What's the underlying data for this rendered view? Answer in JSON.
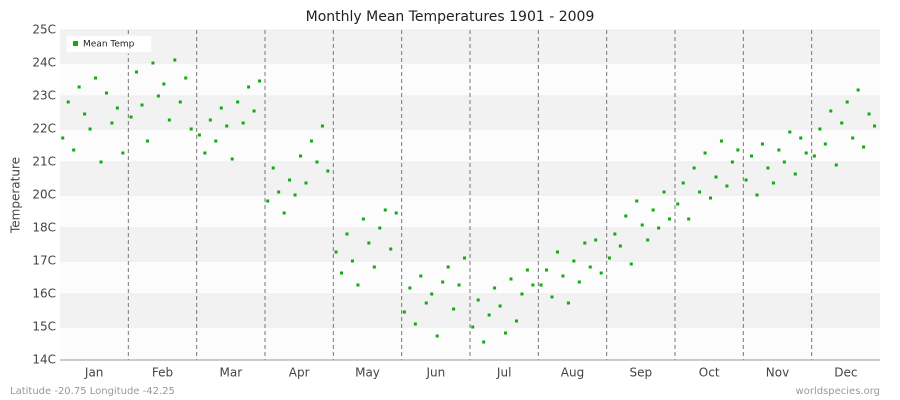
{
  "chart_data": {
    "type": "scatter",
    "title": "Monthly Mean Temperatures 1901 - 2009",
    "ylabel": "Temperature",
    "categories": [
      "Jan",
      "Feb",
      "Mar",
      "Apr",
      "May",
      "Jun",
      "Jul",
      "Aug",
      "Sep",
      "Oct",
      "Nov",
      "Dec"
    ],
    "xlim": [
      0,
      12
    ],
    "ylim": [
      14,
      25
    ],
    "yticks": [
      {
        "value": 14,
        "label": "14C"
      },
      {
        "value": 15.1,
        "label": "15C"
      },
      {
        "value": 16.2,
        "label": "16C"
      },
      {
        "value": 17.3,
        "label": "17C"
      },
      {
        "value": 18.4,
        "label": "18C"
      },
      {
        "value": 19.5,
        "label": "20C"
      },
      {
        "value": 20.6,
        "label": "21C"
      },
      {
        "value": 21.7,
        "label": "22C"
      },
      {
        "value": 22.8,
        "label": "23C"
      },
      {
        "value": 23.9,
        "label": "24C"
      },
      {
        "value": 25,
        "label": "25C"
      }
    ],
    "legend": "top-left",
    "series": [
      {
        "name": "Mean Temp",
        "color": "#11aa11",
        "x": [
          0.04,
          0.12,
          0.2,
          0.28,
          0.36,
          0.44,
          0.52,
          0.6,
          0.68,
          0.76,
          0.84,
          0.92,
          1.04,
          1.12,
          1.2,
          1.28,
          1.36,
          1.44,
          1.52,
          1.6,
          1.68,
          1.76,
          1.84,
          1.92,
          2.04,
          2.12,
          2.2,
          2.28,
          2.36,
          2.44,
          2.52,
          2.6,
          2.68,
          2.76,
          2.84,
          2.92,
          3.04,
          3.12,
          3.2,
          3.28,
          3.36,
          3.44,
          3.52,
          3.6,
          3.68,
          3.76,
          3.84,
          3.92,
          4.04,
          4.12,
          4.2,
          4.28,
          4.36,
          4.44,
          4.52,
          4.6,
          4.68,
          4.76,
          4.84,
          4.92,
          5.04,
          5.12,
          5.2,
          5.28,
          5.36,
          5.44,
          5.52,
          5.6,
          5.68,
          5.76,
          5.84,
          5.92,
          6.04,
          6.12,
          6.2,
          6.28,
          6.36,
          6.44,
          6.52,
          6.6,
          6.68,
          6.76,
          6.84,
          6.92,
          7.04,
          7.12,
          7.2,
          7.28,
          7.36,
          7.44,
          7.52,
          7.6,
          7.68,
          7.76,
          7.84,
          7.92,
          8.04,
          8.12,
          8.2,
          8.28,
          8.36,
          8.44,
          8.52,
          8.6,
          8.68,
          8.76,
          8.84,
          8.92,
          9.04,
          9.12,
          9.2,
          9.28,
          9.36,
          9.44,
          9.52,
          9.6,
          9.68,
          9.76,
          9.84,
          9.92,
          10.04,
          10.12,
          10.2,
          10.28,
          10.36,
          10.44,
          10.52,
          10.6,
          10.68,
          10.76,
          10.84,
          10.92,
          11.04,
          11.12,
          11.2,
          11.28,
          11.36,
          11.44,
          11.52,
          11.6,
          11.68,
          11.76,
          11.84,
          11.92
        ],
        "values": [
          21.4,
          22.6,
          21.0,
          23.1,
          22.2,
          21.7,
          23.4,
          20.6,
          22.9,
          21.9,
          22.4,
          20.9,
          22.1,
          23.6,
          22.5,
          21.3,
          23.9,
          22.8,
          23.2,
          22.0,
          24.0,
          22.6,
          23.4,
          21.7,
          21.5,
          20.9,
          22.0,
          21.3,
          22.4,
          21.8,
          20.7,
          22.6,
          21.9,
          23.1,
          22.3,
          23.3,
          19.3,
          20.4,
          19.6,
          18.9,
          20.0,
          19.5,
          20.8,
          19.9,
          21.3,
          20.6,
          21.8,
          20.3,
          17.6,
          16.9,
          18.2,
          17.3,
          16.5,
          18.7,
          17.9,
          17.1,
          18.4,
          19.0,
          17.7,
          18.9,
          15.6,
          16.4,
          15.2,
          16.8,
          15.9,
          16.2,
          14.8,
          16.6,
          17.1,
          15.7,
          16.5,
          17.4,
          15.1,
          16.0,
          14.6,
          15.5,
          16.4,
          15.8,
          14.9,
          16.7,
          15.3,
          16.2,
          17.0,
          16.5,
          16.5,
          17.0,
          16.1,
          17.6,
          16.8,
          15.9,
          17.3,
          16.6,
          17.9,
          17.1,
          18.0,
          16.9,
          17.4,
          18.2,
          17.8,
          18.8,
          17.2,
          19.3,
          18.5,
          18.0,
          19.0,
          18.4,
          19.6,
          18.7,
          19.2,
          19.9,
          18.7,
          20.4,
          19.6,
          20.9,
          19.4,
          20.1,
          21.3,
          19.8,
          20.6,
          21.0,
          20.0,
          20.8,
          19.5,
          21.2,
          20.4,
          19.9,
          21.0,
          20.6,
          21.6,
          20.2,
          21.4,
          20.9,
          20.8,
          21.7,
          21.2,
          22.3,
          20.5,
          21.9,
          22.6,
          21.4,
          23.0,
          21.1,
          22.2,
          21.8
        ]
      }
    ],
    "footer_left": "Latitude -20.75 Longitude -42.25",
    "footer_right": "worldspecies.org"
  }
}
